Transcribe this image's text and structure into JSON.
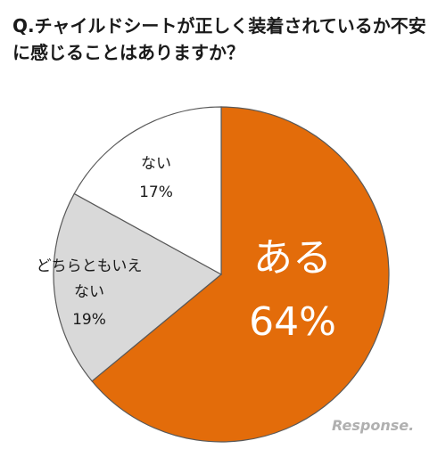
{
  "question": "Q.チャイルドシートが正しく装着されているか不安に感じることはありますか？",
  "chart_data": {
    "type": "pie",
    "title": "",
    "slices": [
      {
        "label": "ある",
        "value": 64,
        "value_label": "64%",
        "color": "#e36c0a"
      },
      {
        "label": "どちらともいえない",
        "value": 19,
        "value_label": "19%",
        "color": "#d9d9d9"
      },
      {
        "label": "ない",
        "value": 17,
        "value_label": "17%",
        "color": "#ffffff"
      }
    ],
    "start": "12 o'clock",
    "direction": "clockwise",
    "legend": "none"
  },
  "watermark": "Response."
}
